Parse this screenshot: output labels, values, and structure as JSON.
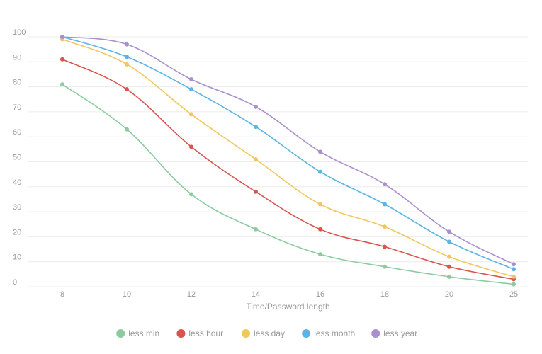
{
  "chart_data": {
    "type": "line",
    "title": "",
    "xlabel": "Time/Password length",
    "ylabel": "",
    "categories": [
      "8",
      "10",
      "12",
      "14",
      "16",
      "18",
      "20",
      "25"
    ],
    "yticks": [
      "0",
      "10",
      "20",
      "30",
      "40",
      "50",
      "60",
      "70",
      "80",
      "90",
      "100"
    ],
    "ylim": [
      0,
      100
    ],
    "grid": true,
    "legend_position": "bottom",
    "series": [
      {
        "name": "less min",
        "color": "#8ccba0",
        "values": [
          81,
          63,
          37,
          23,
          13,
          8,
          4,
          1
        ]
      },
      {
        "name": "less hour",
        "color": "#d9534f",
        "values": [
          91,
          79,
          56,
          38,
          23,
          16,
          8,
          3
        ]
      },
      {
        "name": "less day",
        "color": "#f0c75e",
        "values": [
          99,
          89,
          69,
          51,
          33,
          24,
          12,
          4
        ]
      },
      {
        "name": "less month",
        "color": "#5ab4e5",
        "values": [
          100,
          92,
          79,
          64,
          46,
          33,
          18,
          7
        ]
      },
      {
        "name": "less year",
        "color": "#a98fce",
        "values": [
          100,
          97,
          83,
          72,
          54,
          41,
          22,
          9
        ]
      }
    ]
  }
}
